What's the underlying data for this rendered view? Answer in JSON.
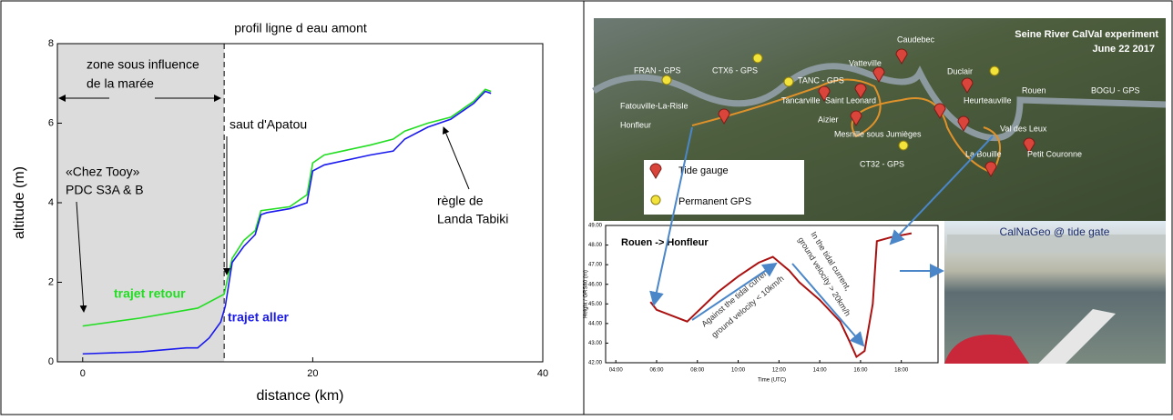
{
  "chart_data": [
    {
      "type": "line",
      "title": "profil ligne d eau amont",
      "x_label": "distance (km)",
      "y_label": "altitude (m)",
      "xlim": [
        -2.2,
        40
      ],
      "ylim": [
        0,
        8
      ],
      "xticks": [
        0,
        20,
        40
      ],
      "yticks": [
        0,
        2,
        4,
        6,
        8
      ],
      "shaded_region": {
        "xlim": [
          -2.2,
          12.3
        ],
        "color": "#dcdcdc"
      },
      "annotations": [
        "zone sous influence",
        "de la marée",
        "saut d'Apatou",
        "«Chez Tooy»",
        "PDC S3A & B",
        "règle de",
        "Landa Tabiki"
      ],
      "series": [
        {
          "name": "trajet retour",
          "color": "#22dd22",
          "x": [
            0,
            5,
            10,
            12.3,
            12.6,
            13,
            14,
            15,
            15.5,
            18,
            19.5,
            20,
            21,
            25,
            27,
            28,
            30,
            32,
            34,
            35,
            35.5
          ],
          "values": [
            0.9,
            1.1,
            1.35,
            1.7,
            2.1,
            2.6,
            3.05,
            3.3,
            3.8,
            3.9,
            4.2,
            5.0,
            5.2,
            5.45,
            5.6,
            5.8,
            6.0,
            6.15,
            6.55,
            6.85,
            6.8
          ]
        },
        {
          "name": "trajet aller",
          "color": "#1a1aee",
          "x": [
            0,
            5,
            9,
            10,
            11,
            12,
            12.4,
            13,
            14,
            15,
            15.5,
            16,
            18,
            19.5,
            20,
            21,
            25,
            27,
            28,
            30,
            32,
            34,
            35,
            35.5
          ],
          "values": [
            0.2,
            0.25,
            0.35,
            0.35,
            0.6,
            1.0,
            1.4,
            2.5,
            2.9,
            3.2,
            3.7,
            3.75,
            3.85,
            4.0,
            4.8,
            4.95,
            5.2,
            5.3,
            5.6,
            5.9,
            6.1,
            6.5,
            6.8,
            6.75
          ]
        }
      ]
    },
    {
      "type": "line",
      "title": "Rouen -> Honfleur",
      "x_label": "Time (UTC)",
      "y_label": "Height / GRS80 (m)",
      "xlim": [
        3.5,
        19.8
      ],
      "ylim": [
        42,
        49
      ],
      "xticks": [
        {
          "value": 4,
          "label": "04:00"
        },
        {
          "value": 6,
          "label": "06:00"
        },
        {
          "value": 8,
          "label": "08:00"
        },
        {
          "value": 10,
          "label": "10:00"
        },
        {
          "value": 12,
          "label": "12:00"
        },
        {
          "value": 14,
          "label": "14:00"
        },
        {
          "value": 16,
          "label": "16:00"
        },
        {
          "value": 18,
          "label": "18:00"
        }
      ],
      "yticks": [
        {
          "value": 42,
          "label": "42.00"
        },
        {
          "value": 43,
          "label": "43.00"
        },
        {
          "value": 44,
          "label": "44.00"
        },
        {
          "value": 45,
          "label": "45.00"
        },
        {
          "value": 46,
          "label": "46.00"
        },
        {
          "value": 47,
          "label": "47.00"
        },
        {
          "value": 48,
          "label": "48.00"
        },
        {
          "value": 49,
          "label": "49.00"
        }
      ],
      "annotations": [
        "Against the tidal current,",
        "ground velocity < 10km/h",
        "In the tidal current,",
        "ground velocity > 20km/h"
      ],
      "series": [
        {
          "color": "#aa1111",
          "x": [
            5.7,
            6,
            7.5,
            8,
            9,
            10,
            11,
            11.7,
            12.5,
            13,
            14,
            15,
            15.5,
            15.8,
            16.2,
            16.6,
            16.8,
            17.5,
            18.5
          ],
          "values": [
            45.1,
            44.7,
            44.1,
            44.6,
            45.6,
            46.4,
            47.1,
            47.4,
            46.7,
            46.1,
            45.2,
            44.1,
            43.0,
            42.3,
            42.6,
            45.0,
            48.2,
            48.4,
            48.6
          ]
        }
      ]
    }
  ],
  "map": {
    "title": "Seine River CalVal experiment",
    "date": "June 22 2017",
    "places": [
      "FRAN - GPS",
      "CTX6 - GPS",
      "TANC - GPS",
      "Caudebec",
      "Vatteville",
      "Duclair",
      "Rouen",
      "BOGU - GPS",
      "Fatouville-La-Risle",
      "Honfleur",
      "Tancarville",
      "Saint Leonard",
      "Heurteauville",
      "Aizier",
      "Val des Leux",
      "Mesnille sous Jumièges",
      "La Bouille",
      "Petit Couronne",
      "CT32 - GPS"
    ],
    "legend": [
      "Tide gauge",
      "Permanent GPS"
    ]
  },
  "photo": {
    "label": "CalNaGeo @ tide gate"
  }
}
